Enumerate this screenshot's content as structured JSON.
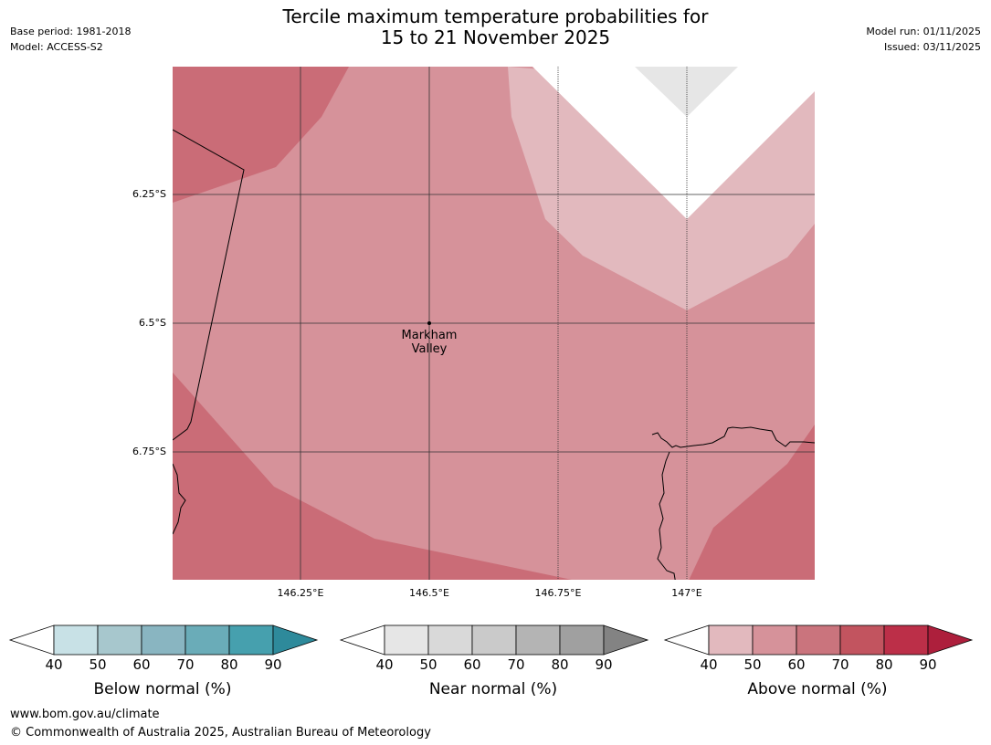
{
  "header": {
    "title_line1": "Tercile maximum temperature probabilities for",
    "title_line2": "15 to 21 November 2025",
    "base_period": "Base period: 1981-2018",
    "model": "Model: ACCESS-S2",
    "model_run": "Model run: 01/11/2025",
    "issued": "Issued: 03/11/2025"
  },
  "map": {
    "lat_labels": [
      "6.25°S",
      "6.5°S",
      "6.75°S"
    ],
    "lon_labels": [
      "146.25°E",
      "146.5°E",
      "146.75°E",
      "147°E"
    ],
    "place_name_line1": "Markham",
    "place_name_line2": "Valley",
    "colors": {
      "above_50_60": "#d6929a",
      "above_60_70": "#ca6c77",
      "above_40_50": "#e2b9be",
      "near_40_50": "#e6e6e6"
    }
  },
  "colorbars": [
    {
      "title": "Below normal (%)",
      "ticks": [
        "40",
        "50",
        "60",
        "70",
        "80",
        "90"
      ],
      "colors": [
        "#c8e1e6",
        "#a7c7cd",
        "#89b5c1",
        "#6aacb8",
        "#46a0ae",
        "#2e8a9b"
      ]
    },
    {
      "title": "Near normal (%)",
      "ticks": [
        "40",
        "50",
        "60",
        "70",
        "80",
        "90"
      ],
      "colors": [
        "#e6e6e6",
        "#d9d9d9",
        "#cacaca",
        "#b4b4b4",
        "#a0a0a0",
        "#838383"
      ]
    },
    {
      "title": "Above normal (%)",
      "ticks": [
        "40",
        "50",
        "60",
        "70",
        "80",
        "90"
      ],
      "colors": [
        "#e2b9be",
        "#d6929a",
        "#ca747d",
        "#c2545f",
        "#bc2f48",
        "#ad1f3c"
      ]
    }
  ],
  "footer": {
    "url": "www.bom.gov.au/climate",
    "copyright": "© Commonwealth of Australia 2025, Australian Bureau of Meteorology"
  }
}
